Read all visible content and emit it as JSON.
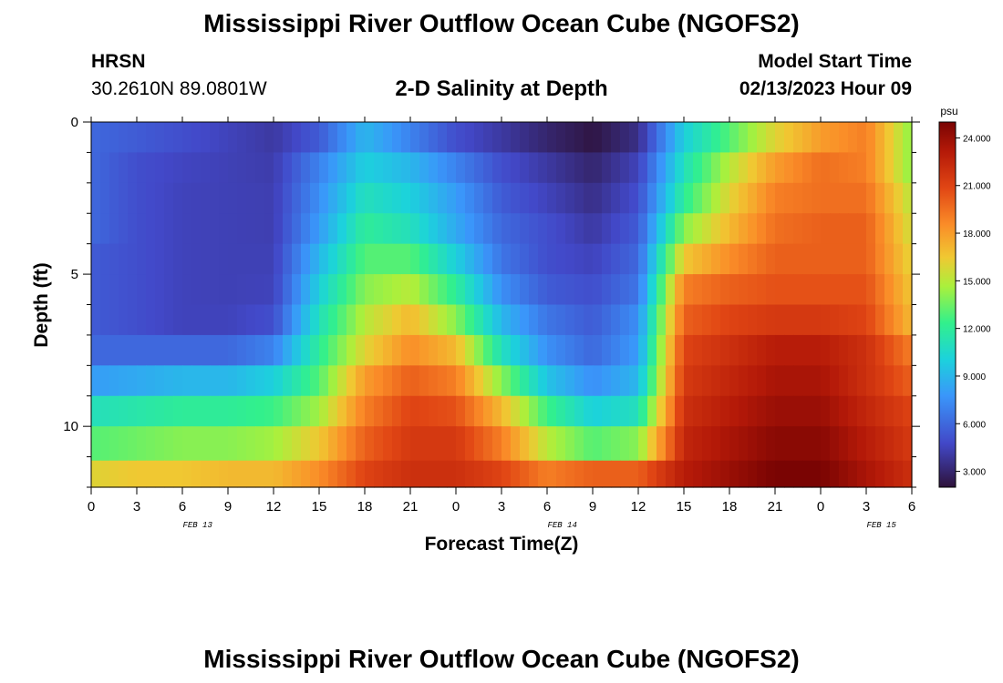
{
  "header": {
    "title": "Mississippi River Outflow Ocean Cube (NGOFS2)",
    "station_name": "HRSN",
    "station_coords": "30.2610N  89.0801W",
    "subtitle": "2-D Salinity at Depth",
    "model_start_label": "Model Start Time",
    "model_start_value": "02/13/2023 Hour 09"
  },
  "footer": {
    "title": "Mississippi River Outflow Ocean Cube (NGOFS2)"
  },
  "chart_data": {
    "type": "heatmap",
    "title": "2-D Salinity at Depth",
    "xlabel": "Forecast Time(Z)",
    "ylabel": "Depth (ft)",
    "x_range_hours_from_start": [
      0,
      54
    ],
    "x_tick_labels": [
      "0",
      "3",
      "6",
      "9",
      "12",
      "15",
      "18",
      "21",
      "0",
      "3",
      "6",
      "9",
      "12",
      "15",
      "18",
      "21",
      "0",
      "3",
      "6"
    ],
    "x_date_labels": [
      {
        "label": "FEB 13",
        "at_tick": 2
      },
      {
        "label": "FEB 14",
        "at_tick": 10
      },
      {
        "label": "FEB 15",
        "at_tick": 17
      }
    ],
    "y_range": [
      0,
      12
    ],
    "y_ticks": [
      0,
      5,
      10
    ],
    "colorbar": {
      "unit": "psu",
      "range": [
        2.0,
        25.0
      ],
      "ticks": [
        "3.000",
        "6.000",
        "9.000",
        "12.000",
        "15.000",
        "18.000",
        "21.000",
        "24.000"
      ],
      "tick_values": [
        3,
        6,
        9,
        12,
        15,
        18,
        21,
        24
      ]
    },
    "depth_layers": [
      0.5,
      1.5,
      2.5,
      3.5,
      4.5,
      5.5,
      6.5,
      7.5,
      8.5,
      9.5,
      10.5,
      11.75
    ],
    "key_times_hours": [
      0,
      3,
      6,
      9,
      12,
      15,
      18,
      21,
      24,
      27,
      30,
      33,
      36,
      39,
      42,
      45,
      48,
      51,
      54
    ],
    "salinity_psu": [
      [
        6.0,
        5.5,
        5.0,
        4.5,
        4.0,
        5.5,
        9.0,
        7.0,
        5.0,
        4.0,
        3.0,
        2.2,
        3.5,
        10.0,
        13.0,
        16.0,
        18.0,
        19.0,
        14.0
      ],
      [
        6.0,
        5.0,
        4.6,
        4.4,
        4.2,
        7.0,
        10.0,
        9.0,
        7.0,
        5.0,
        4.0,
        3.0,
        4.5,
        11.0,
        15.0,
        18.0,
        19.5,
        19.0,
        14.0
      ],
      [
        6.0,
        5.0,
        4.5,
        4.4,
        4.3,
        7.5,
        11.0,
        10.0,
        8.0,
        5.5,
        4.5,
        3.5,
        5.0,
        12.0,
        16.0,
        19.0,
        19.5,
        19.5,
        15.0
      ],
      [
        6.0,
        5.0,
        4.5,
        4.4,
        4.3,
        8.0,
        12.0,
        11.0,
        8.5,
        6.0,
        5.0,
        4.0,
        5.5,
        14.0,
        17.0,
        19.5,
        20.0,
        20.0,
        15.5
      ],
      [
        5.5,
        5.0,
        4.5,
        4.4,
        4.4,
        9.0,
        13.0,
        13.0,
        10.0,
        6.5,
        5.0,
        4.5,
        6.0,
        16.5,
        18.5,
        20.0,
        20.0,
        20.0,
        16.0
      ],
      [
        5.5,
        5.0,
        4.5,
        4.4,
        4.5,
        10.0,
        14.0,
        15.0,
        12.0,
        7.5,
        5.5,
        5.0,
        6.5,
        19.0,
        20.0,
        20.5,
        20.5,
        20.5,
        16.5
      ],
      [
        5.5,
        5.0,
        4.5,
        4.5,
        5.0,
        11.0,
        15.0,
        17.0,
        14.0,
        9.0,
        6.5,
        5.5,
        7.5,
        20.0,
        21.0,
        21.5,
        21.5,
        21.0,
        17.0
      ],
      [
        6.0,
        6.0,
        6.0,
        6.0,
        7.0,
        12.0,
        16.0,
        18.5,
        17.0,
        11.0,
        7.5,
        6.0,
        8.0,
        21.0,
        22.0,
        23.0,
        23.0,
        22.0,
        19.0
      ],
      [
        8.0,
        8.5,
        9.0,
        9.0,
        10.0,
        13.0,
        18.0,
        20.0,
        19.0,
        14.0,
        9.5,
        7.5,
        9.0,
        21.5,
        22.5,
        23.5,
        23.5,
        22.0,
        20.0
      ],
      [
        11.0,
        11.5,
        12.0,
        12.0,
        12.5,
        14.5,
        19.0,
        21.0,
        20.5,
        17.0,
        12.5,
        10.0,
        11.0,
        22.0,
        23.0,
        24.0,
        24.0,
        22.5,
        21.0
      ],
      [
        13.0,
        13.5,
        14.0,
        14.0,
        14.5,
        16.5,
        20.0,
        21.5,
        21.5,
        19.0,
        15.0,
        13.0,
        14.0,
        22.5,
        23.5,
        24.5,
        24.5,
        23.0,
        21.5
      ],
      [
        16.0,
        16.5,
        16.5,
        17.0,
        17.0,
        18.5,
        21.0,
        22.0,
        22.0,
        21.0,
        19.0,
        20.0,
        20.0,
        23.0,
        24.0,
        25.0,
        25.0,
        23.5,
        22.0
      ]
    ]
  }
}
